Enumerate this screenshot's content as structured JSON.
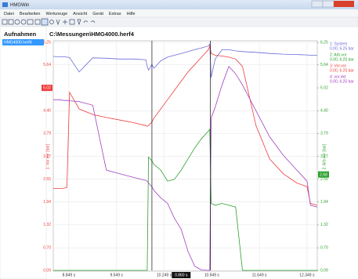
{
  "window": {
    "title": "HMGWin"
  },
  "menu": [
    "Datei",
    "Bearbeiten",
    "Werkzeuge",
    "Ansicht",
    "Gerät",
    "Extras",
    "Hilfe"
  ],
  "sidebar": {
    "title": "Aufnahmen",
    "items": [
      "HMG4000.herf4"
    ]
  },
  "chart_data": {
    "type": "line",
    "title": "C:\\Messungen\\HMG4000.herf4",
    "y_label": "1: Vor.vor [bar]",
    "y2_label": "2: Arb.vor [bar]",
    "x": [
      8.62,
      8.7,
      8.78,
      8.82,
      8.86,
      9.0,
      9.2,
      9.4,
      9.6,
      9.8,
      9.98,
      10.0,
      10.02,
      10.07,
      10.1,
      10.2,
      10.3,
      10.4,
      10.5,
      10.6,
      10.7,
      10.8,
      10.9,
      10.92,
      10.94,
      11.0,
      11.1,
      11.2,
      11.3,
      11.4,
      11.6,
      11.8,
      12.0,
      12.2,
      12.35,
      12.4,
      12.5
    ],
    "xlim": [
      8.62,
      12.5
    ],
    "xticks": [
      {
        "value": 8.849,
        "label": "8.849 s"
      },
      {
        "value": 9.549,
        "label": "9.549 s"
      },
      {
        "value": 10.249,
        "label": "10.249 s"
      },
      {
        "value": 10.949,
        "label": "10.949 s"
      },
      {
        "value": 11.649,
        "label": "11.649 s"
      },
      {
        "value": 12.349,
        "label": "12.349 s"
      }
    ],
    "ylim": [
      0.09,
      6.25
    ],
    "yticks": [
      6.25,
      5.64,
      {
        "value": 4.4,
        "label": "4.40"
      },
      3.79,
      3.17,
      2.55,
      1.94,
      1.32,
      {
        "value": 0.7,
        "label": "0.70"
      },
      0.09
    ],
    "y2lim": [
      0.09,
      6.25
    ],
    "y2ticks": [
      6.25,
      5.64,
      5.02,
      {
        "value": 4.4,
        "label": "4.40"
      },
      3.79,
      3.17,
      2.55,
      1.94,
      1.32,
      {
        "value": 0.7,
        "label": "0.70"
      },
      0.09
    ],
    "y_readout": 5.02,
    "y2_readout": 2.68,
    "cursors": [
      10.07,
      10.93
    ],
    "cursor_delta": "0.860 s",
    "grid": true,
    "series": [
      {
        "name": "1: System",
        "range": "0.00, 6.25 bar",
        "color": "#6a6ad8",
        "values": [
          5.87,
          5.86,
          5.86,
          5.85,
          5.84,
          5.45,
          5.83,
          5.82,
          5.8,
          5.8,
          5.78,
          5.6,
          5.5,
          5.65,
          5.55,
          5.75,
          5.85,
          5.9,
          5.95,
          6.0,
          6.05,
          6.1,
          6.15,
          6.2,
          5.3,
          5.8,
          6.05,
          6.05,
          6.02,
          6.0,
          5.98,
          5.95,
          5.93,
          5.92,
          5.91,
          5.9,
          5.9
        ]
      },
      {
        "name": "2: Arb.vor",
        "range": "0.00, 6.25 bar",
        "color": "#2ca02c",
        "axis": "y2",
        "values": [
          0.09,
          0.09,
          0.09,
          0.09,
          0.09,
          0.09,
          0.09,
          0.09,
          0.09,
          0.09,
          0.09,
          0.09,
          3.15,
          3.05,
          2.95,
          2.8,
          2.5,
          2.55,
          2.8,
          3.1,
          3.4,
          3.65,
          3.85,
          3.9,
          1.9,
          1.85,
          1.9,
          1.85,
          1.8,
          0.09,
          0.09,
          0.09,
          0.09,
          0.09,
          0.09,
          0.09,
          0.09
        ]
      },
      {
        "name": "3: Vor.vor",
        "range": "0.00, 6.25 bar",
        "color": "#f03c3c",
        "values": [
          2.3,
          2.3,
          2.31,
          2.33,
          4.9,
          4.45,
          4.3,
          4.22,
          4.15,
          4.08,
          4.0,
          3.98,
          4.0,
          4.1,
          4.2,
          4.45,
          4.7,
          4.95,
          5.2,
          5.45,
          5.65,
          5.85,
          6.05,
          6.15,
          5.95,
          5.9,
          5.88,
          5.85,
          5.8,
          5.6,
          4.0,
          3.1,
          2.7,
          2.45,
          2.35,
          1.9,
          1.85
        ]
      },
      {
        "name": "4: vor.nkt",
        "range": "0.00, 6.25 bar",
        "color": "#a040c0",
        "values": [
          4.7,
          4.7,
          4.68,
          4.68,
          4.67,
          4.65,
          4.55,
          2.8,
          2.7,
          2.6,
          2.52,
          2.5,
          2.45,
          2.35,
          2.25,
          2.05,
          1.9,
          1.5,
          1.2,
          0.6,
          0.2,
          0.1,
          0.09,
          0.09,
          4.2,
          4.5,
          5.1,
          5.6,
          5.4,
          5.1,
          4.4,
          3.7,
          3.2,
          2.8,
          2.5,
          1.85,
          1.8
        ]
      }
    ]
  }
}
